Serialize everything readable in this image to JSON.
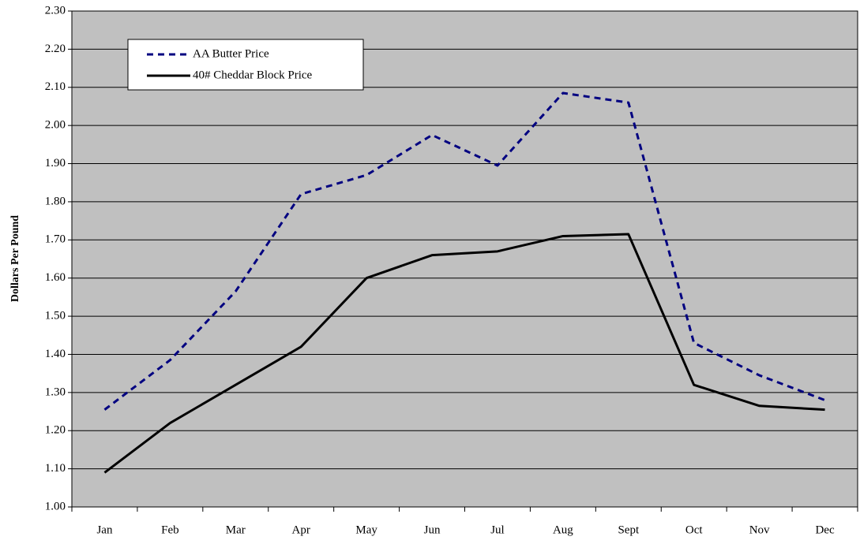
{
  "chart_data": {
    "type": "line",
    "y_label": "Dollars Per Pound",
    "categories": [
      "Jan",
      "Feb",
      "Mar",
      "Apr",
      "May",
      "Jun",
      "Jul",
      "Aug",
      "Sept",
      "Oct",
      "Nov",
      "Dec"
    ],
    "series": [
      {
        "name": "AA Butter Price",
        "color": "#000080",
        "dashed": true,
        "values": [
          1.255,
          1.385,
          1.565,
          1.82,
          1.87,
          1.975,
          1.895,
          2.085,
          2.06,
          1.43,
          1.345,
          1.28
        ]
      },
      {
        "name": "40# Cheddar Block Price",
        "color": "#000000",
        "dashed": false,
        "values": [
          1.09,
          1.22,
          1.32,
          1.42,
          1.6,
          1.66,
          1.67,
          1.71,
          1.715,
          1.32,
          1.265,
          1.255
        ]
      }
    ],
    "ylim": [
      1,
      2.3
    ],
    "yticks": [
      {
        "value": 1,
        "label": "1.00"
      },
      {
        "value": 1.1,
        "label": "1.10"
      },
      {
        "value": 1.2,
        "label": "1.20"
      },
      {
        "value": 1.3,
        "label": "1.30"
      },
      {
        "value": 1.4,
        "label": "1.40"
      },
      {
        "value": 1.5,
        "label": "1.50"
      },
      {
        "value": 1.6,
        "label": "1.60"
      },
      {
        "value": 1.7,
        "label": "1.70"
      },
      {
        "value": 1.8,
        "label": "1.80"
      },
      {
        "value": 1.9,
        "label": "1.90"
      },
      {
        "value": 2,
        "label": "2.00"
      },
      {
        "value": 2.1,
        "label": "2.10"
      },
      {
        "value": 2.2,
        "label": "2.20"
      },
      {
        "value": 2.3,
        "label": "2.30"
      }
    ],
    "grid": true,
    "plot_background": "#c0c0c0"
  }
}
